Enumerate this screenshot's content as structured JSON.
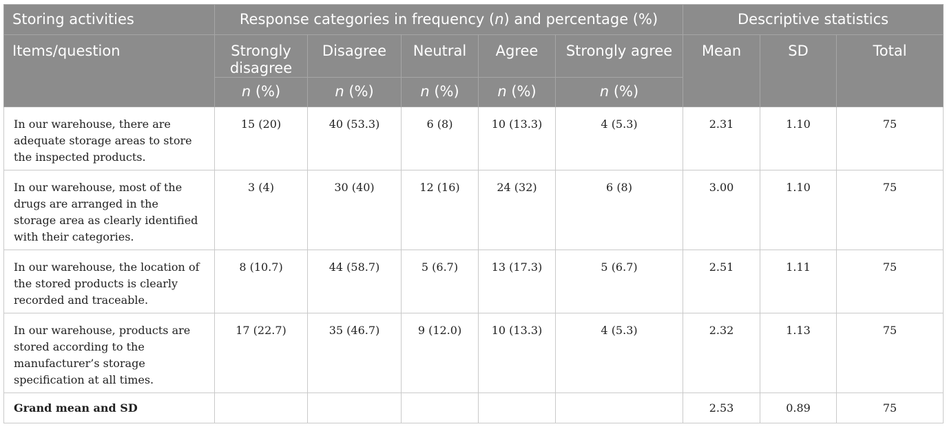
{
  "header": {
    "storing_activities": "Storing activities",
    "response_categories_prefix": "Response categories in frequency (",
    "response_categories_n": "n",
    "response_categories_mid": ") and percentage (%)",
    "descriptive_statistics": "Descriptive statistics",
    "items_question": "Items/question",
    "strongly_disagree": "Strongly disagree",
    "disagree": "Disagree",
    "neutral": "Neutral",
    "agree": "Agree",
    "strongly_agree": "Strongly agree",
    "mean": "Mean",
    "sd": "SD",
    "total": "Total",
    "n_label": "n",
    "pct_label": " (%)"
  },
  "rows": [
    {
      "item": "In our warehouse, there are adequate storage areas to store the inspected products.",
      "strongly_disagree": "15 (20)",
      "disagree": "40 (53.3)",
      "neutral": "6 (8)",
      "agree": "10 (13.3)",
      "strongly_agree": "4 (5.3)",
      "mean": "2.31",
      "sd": "1.10",
      "total": "75"
    },
    {
      "item": "In our warehouse, most of the drugs are arranged in the storage area as clearly identified with their categories.",
      "strongly_disagree": "3 (4)",
      "disagree": "30 (40)",
      "neutral": "12 (16)",
      "agree": "24 (32)",
      "strongly_agree": "6 (8)",
      "mean": "3.00",
      "sd": "1.10",
      "total": "75"
    },
    {
      "item": "In our warehouse, the location of the stored products is clearly recorded and traceable.",
      "strongly_disagree": "8 (10.7)",
      "disagree": "44 (58.7)",
      "neutral": "5 (6.7)",
      "agree": "13 (17.3)",
      "strongly_agree": "5 (6.7)",
      "mean": "2.51",
      "sd": "1.11",
      "total": "75"
    },
    {
      "item": "In our warehouse, products are stored according to the manufacturer’s storage specification at all times.",
      "strongly_disagree": "17 (22.7)",
      "disagree": "35 (46.7)",
      "neutral": "9 (12.0)",
      "agree": "10 (13.3)",
      "strongly_agree": "4 (5.3)",
      "mean": "2.32",
      "sd": "1.13",
      "total": "75"
    }
  ],
  "grand": {
    "label": "Grand mean and SD",
    "mean": "2.53",
    "sd": "0.89",
    "total": "75"
  },
  "colors": {
    "header_bg": "#8c8c8c",
    "header_text": "#ffffff",
    "border": "#c9c9c9",
    "body_text": "#222222"
  }
}
